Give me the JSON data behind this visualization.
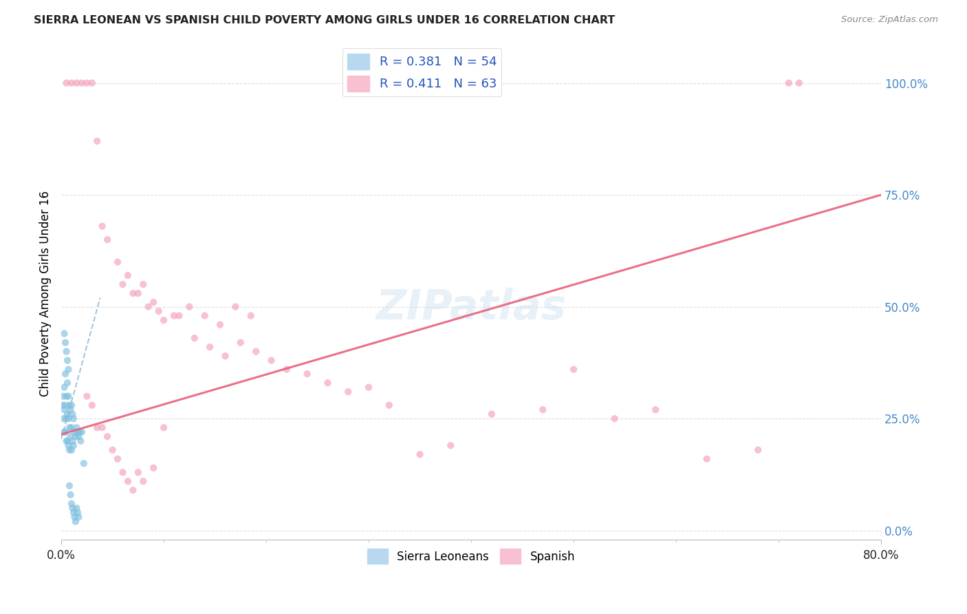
{
  "title": "SIERRA LEONEAN VS SPANISH CHILD POVERTY AMONG GIRLS UNDER 16 CORRELATION CHART",
  "source": "Source: ZipAtlas.com",
  "ylabel": "Child Poverty Among Girls Under 16",
  "ytick_labels": [
    "0.0%",
    "25.0%",
    "50.0%",
    "75.0%",
    "100.0%"
  ],
  "ytick_values": [
    0.0,
    0.25,
    0.5,
    0.75,
    1.0
  ],
  "xlim": [
    0.0,
    0.8
  ],
  "ylim": [
    -0.02,
    1.08
  ],
  "legend_r_labels": [
    "R = 0.381   N = 54",
    "R = 0.411   N = 63"
  ],
  "legend_bottom": [
    "Sierra Leoneans",
    "Spanish"
  ],
  "sierra_color": "#7fbfdf",
  "spanish_color": "#f4a0b8",
  "sierra_trend_color": "#90bcd8",
  "spanish_trend_color": "#e8607a",
  "watermark": "ZIPatlas",
  "background": "#ffffff",
  "grid_color": "#dddddd",
  "title_color": "#222222",
  "source_color": "#888888",
  "ytick_color": "#4488cc",
  "xtick_color": "#222222",
  "legend_text_color": "#2255bb",
  "sierra_points_x": [
    0.001,
    0.002,
    0.002,
    0.003,
    0.003,
    0.003,
    0.004,
    0.004,
    0.004,
    0.005,
    0.005,
    0.005,
    0.006,
    0.006,
    0.006,
    0.007,
    0.007,
    0.007,
    0.008,
    0.008,
    0.008,
    0.009,
    0.009,
    0.01,
    0.01,
    0.01,
    0.011,
    0.011,
    0.012,
    0.012,
    0.013,
    0.014,
    0.015,
    0.016,
    0.017,
    0.018,
    0.019,
    0.02,
    0.022,
    0.003,
    0.004,
    0.005,
    0.006,
    0.007,
    0.008,
    0.009,
    0.01,
    0.011,
    0.012,
    0.013,
    0.014,
    0.015,
    0.016,
    0.017
  ],
  "sierra_points_y": [
    0.28,
    0.3,
    0.25,
    0.32,
    0.27,
    0.22,
    0.35,
    0.28,
    0.22,
    0.3,
    0.25,
    0.2,
    0.33,
    0.26,
    0.2,
    0.3,
    0.25,
    0.19,
    0.28,
    0.23,
    0.18,
    0.27,
    0.21,
    0.28,
    0.23,
    0.18,
    0.26,
    0.2,
    0.25,
    0.19,
    0.22,
    0.21,
    0.23,
    0.22,
    0.21,
    0.22,
    0.2,
    0.22,
    0.15,
    0.44,
    0.42,
    0.4,
    0.38,
    0.36,
    0.1,
    0.08,
    0.06,
    0.05,
    0.04,
    0.03,
    0.02,
    0.05,
    0.04,
    0.03
  ],
  "spanish_points_x": [
    0.005,
    0.01,
    0.015,
    0.02,
    0.025,
    0.03,
    0.71,
    0.72,
    0.035,
    0.04,
    0.045,
    0.055,
    0.065,
    0.075,
    0.085,
    0.095,
    0.11,
    0.125,
    0.14,
    0.155,
    0.17,
    0.185,
    0.06,
    0.07,
    0.08,
    0.09,
    0.1,
    0.115,
    0.13,
    0.145,
    0.16,
    0.175,
    0.19,
    0.205,
    0.22,
    0.24,
    0.26,
    0.28,
    0.3,
    0.32,
    0.025,
    0.03,
    0.035,
    0.04,
    0.045,
    0.05,
    0.055,
    0.06,
    0.065,
    0.07,
    0.075,
    0.08,
    0.09,
    0.1,
    0.35,
    0.38,
    0.42,
    0.47,
    0.5,
    0.54,
    0.58,
    0.63,
    0.68
  ],
  "spanish_points_y": [
    1.0,
    1.0,
    1.0,
    1.0,
    1.0,
    1.0,
    1.0,
    1.0,
    0.87,
    0.68,
    0.65,
    0.6,
    0.57,
    0.53,
    0.5,
    0.49,
    0.48,
    0.5,
    0.48,
    0.46,
    0.5,
    0.48,
    0.55,
    0.53,
    0.55,
    0.51,
    0.47,
    0.48,
    0.43,
    0.41,
    0.39,
    0.42,
    0.4,
    0.38,
    0.36,
    0.35,
    0.33,
    0.31,
    0.32,
    0.28,
    0.3,
    0.28,
    0.23,
    0.23,
    0.21,
    0.18,
    0.16,
    0.13,
    0.11,
    0.09,
    0.13,
    0.11,
    0.14,
    0.23,
    0.17,
    0.19,
    0.26,
    0.27,
    0.36,
    0.25,
    0.27,
    0.16,
    0.18
  ],
  "sierra_trend_x": [
    0.0,
    0.038
  ],
  "sierra_trend_y": [
    0.205,
    0.52
  ],
  "spanish_trend_x": [
    0.0,
    0.8
  ],
  "spanish_trend_y": [
    0.215,
    0.75
  ]
}
